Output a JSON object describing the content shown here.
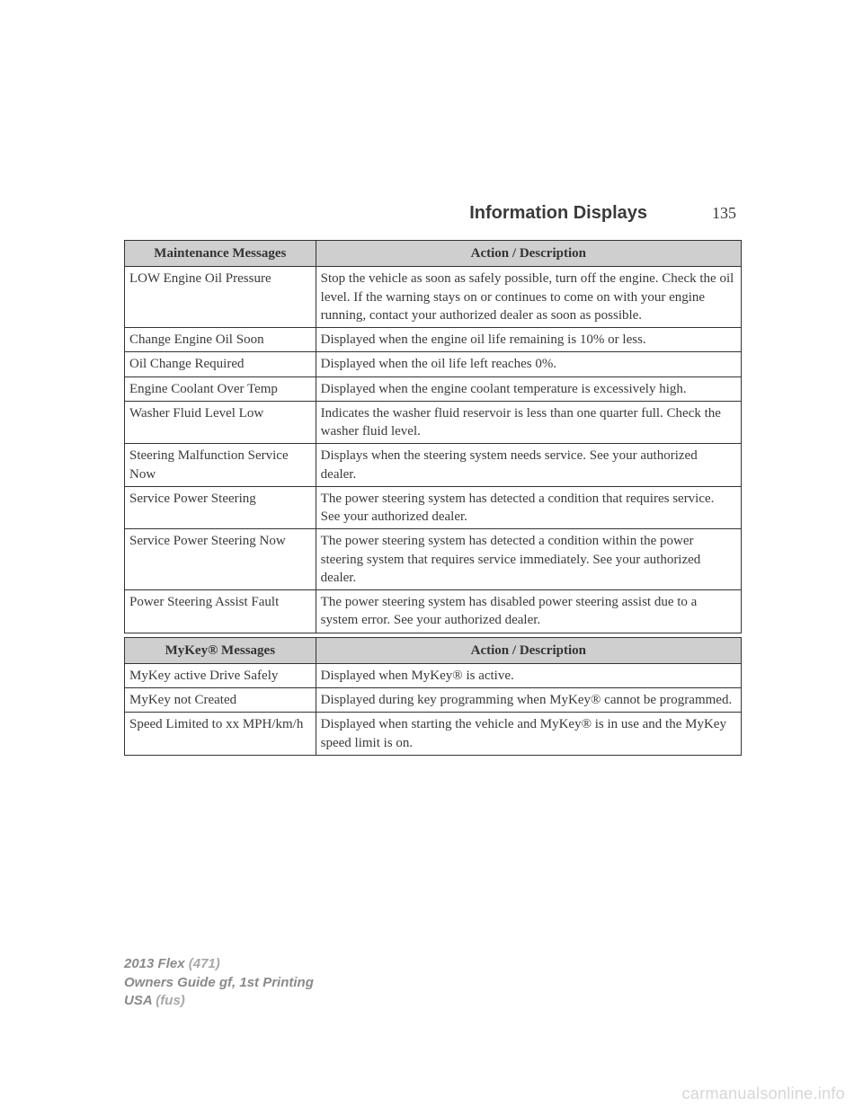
{
  "header": {
    "section_title": "Information Displays",
    "page_number": "135"
  },
  "tables": {
    "maintenance": {
      "header_msg": "Maintenance Messages",
      "header_desc": "Action / Description",
      "rows": [
        {
          "msg": "LOW Engine Oil Pressure",
          "desc": "Stop the vehicle as soon as safely possible, turn off the engine. Check the oil level. If the warning stays on or continues to come on with your engine running, contact your authorized dealer as soon as possible."
        },
        {
          "msg": "Change Engine Oil Soon",
          "desc": "Displayed when the engine oil life remaining is 10% or less."
        },
        {
          "msg": "Oil Change Required",
          "desc": "Displayed when the oil life left reaches 0%."
        },
        {
          "msg": "Engine Coolant Over Temp",
          "desc": "Displayed when the engine coolant temperature is excessively high."
        },
        {
          "msg": "Washer Fluid Level Low",
          "desc": "Indicates the washer fluid reservoir is less than one quarter full. Check the washer fluid level."
        },
        {
          "msg": "Steering Malfunction Service Now",
          "desc": "Displays when the steering system needs service. See your authorized dealer."
        },
        {
          "msg": "Service Power Steering",
          "desc": "The power steering system has detected a condition that requires service. See your authorized dealer."
        },
        {
          "msg": "Service Power Steering Now",
          "desc": "The power steering system has detected a condition within the power steering system that requires service immediately. See your authorized dealer."
        },
        {
          "msg": "Power Steering Assist Fault",
          "desc": "The power steering system has disabled power steering assist due to a system error. See your authorized dealer."
        }
      ]
    },
    "mykey": {
      "header_msg": "MyKey® Messages",
      "header_desc": "Action / Description",
      "rows": [
        {
          "msg": "MyKey active Drive Safely",
          "desc": "Displayed when MyKey® is active."
        },
        {
          "msg": "MyKey not Created",
          "desc": "Displayed during key programming when MyKey® cannot be programmed."
        },
        {
          "msg": "Speed Limited to xx MPH/km/h",
          "desc": "Displayed when starting the vehicle and MyKey® is in use and the MyKey speed limit is on."
        }
      ]
    }
  },
  "footer": {
    "line1a": "2013 Flex",
    "line1b": "(471)",
    "line2": "Owners Guide gf, 1st Printing",
    "line3a": "USA",
    "line3b": "(fus)"
  },
  "watermark": "carmanualsonline.info",
  "colors": {
    "header_bg": "#cfcfcf",
    "border": "#333333",
    "text": "#3a3a3a",
    "footer_light": "#a8a8a8",
    "footer_dark": "#8a8a8a",
    "watermark": "#d6d6d6"
  }
}
